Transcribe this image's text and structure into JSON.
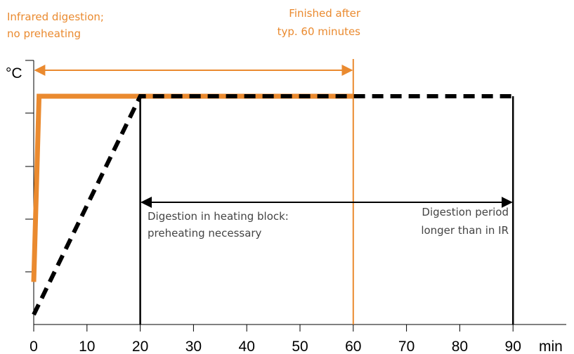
{
  "chart_data": {
    "type": "line",
    "title": "",
    "xlabel": "min",
    "ylabel": "°C",
    "xlim": [
      0,
      100
    ],
    "x_ticks": [
      0,
      10,
      20,
      30,
      40,
      50,
      60,
      70,
      80,
      90
    ],
    "x_tick_labels": [
      "0",
      "10",
      "20",
      "30",
      "40",
      "50",
      "60",
      "70",
      "80",
      "90"
    ],
    "grid": false,
    "series": [
      {
        "key": "infrared",
        "style": "solid",
        "color": "#ea8a2f",
        "points": [
          [
            0,
            0.15
          ],
          [
            1,
            1.0
          ],
          [
            60,
            1.0
          ]
        ]
      },
      {
        "key": "heating_block",
        "style": "dashed",
        "color": "#000000",
        "points": [
          [
            0,
            0.0
          ],
          [
            20,
            1.0
          ],
          [
            90,
            1.0
          ]
        ]
      }
    ],
    "markers": [
      {
        "x": 60,
        "color": "#ea8a2f"
      },
      {
        "x": 20,
        "color": "#000000"
      },
      {
        "x": 90,
        "color": "#000000"
      }
    ],
    "spans": [
      {
        "from": 0,
        "to": 60,
        "color": "#ea8a2f"
      },
      {
        "from": 20,
        "to": 90,
        "color": "#000000"
      }
    ],
    "annotations": {
      "infrared_line1": "Infrared digestion;",
      "infrared_line2": "no preheating",
      "finished_line1": "Finished after",
      "finished_line2": "typ. 60 minutes",
      "block_line1": "Digestion in heating block:",
      "block_line2": "preheating necessary",
      "longer_line1": "Digestion period",
      "longer_line2": "longer than in IR"
    }
  }
}
